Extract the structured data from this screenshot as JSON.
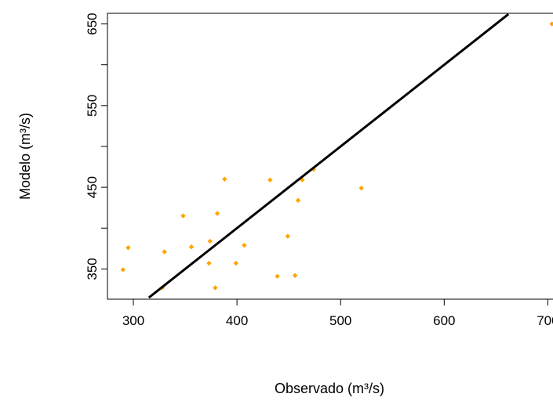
{
  "chart_data": {
    "type": "scatter",
    "xlabel": "Observado (m³/s)",
    "ylabel": "Modelo (m³/s)",
    "xlim": [
      275,
      705
    ],
    "ylim": [
      313,
      663
    ],
    "x_ticks": [
      300,
      400,
      500,
      600,
      700
    ],
    "x_tick_labels": [
      "300",
      "400",
      "500",
      "600",
      "700"
    ],
    "y_ticks": [
      350,
      450,
      550,
      650
    ],
    "y_tick_labels": [
      "350",
      "450",
      "550",
      "650"
    ],
    "y_minor_ticks": [
      400,
      500,
      600
    ],
    "grid": false,
    "point_color": "#FFA500",
    "line_color": "#000000",
    "points": [
      {
        "x": 290,
        "y": 349
      },
      {
        "x": 295,
        "y": 376
      },
      {
        "x": 328,
        "y": 327
      },
      {
        "x": 330,
        "y": 371
      },
      {
        "x": 348,
        "y": 415
      },
      {
        "x": 356,
        "y": 377
      },
      {
        "x": 373,
        "y": 357
      },
      {
        "x": 374,
        "y": 384
      },
      {
        "x": 379,
        "y": 327
      },
      {
        "x": 381,
        "y": 418
      },
      {
        "x": 388,
        "y": 460
      },
      {
        "x": 399,
        "y": 357
      },
      {
        "x": 407,
        "y": 379
      },
      {
        "x": 432,
        "y": 459
      },
      {
        "x": 439,
        "y": 341
      },
      {
        "x": 449,
        "y": 390
      },
      {
        "x": 456,
        "y": 342
      },
      {
        "x": 459,
        "y": 434
      },
      {
        "x": 463,
        "y": 459
      },
      {
        "x": 474,
        "y": 472
      },
      {
        "x": 520,
        "y": 449
      },
      {
        "x": 704,
        "y": 650
      }
    ],
    "fit_line": {
      "slope": 1.0,
      "intercept": 0,
      "x_range": [
        315,
        662
      ]
    }
  }
}
